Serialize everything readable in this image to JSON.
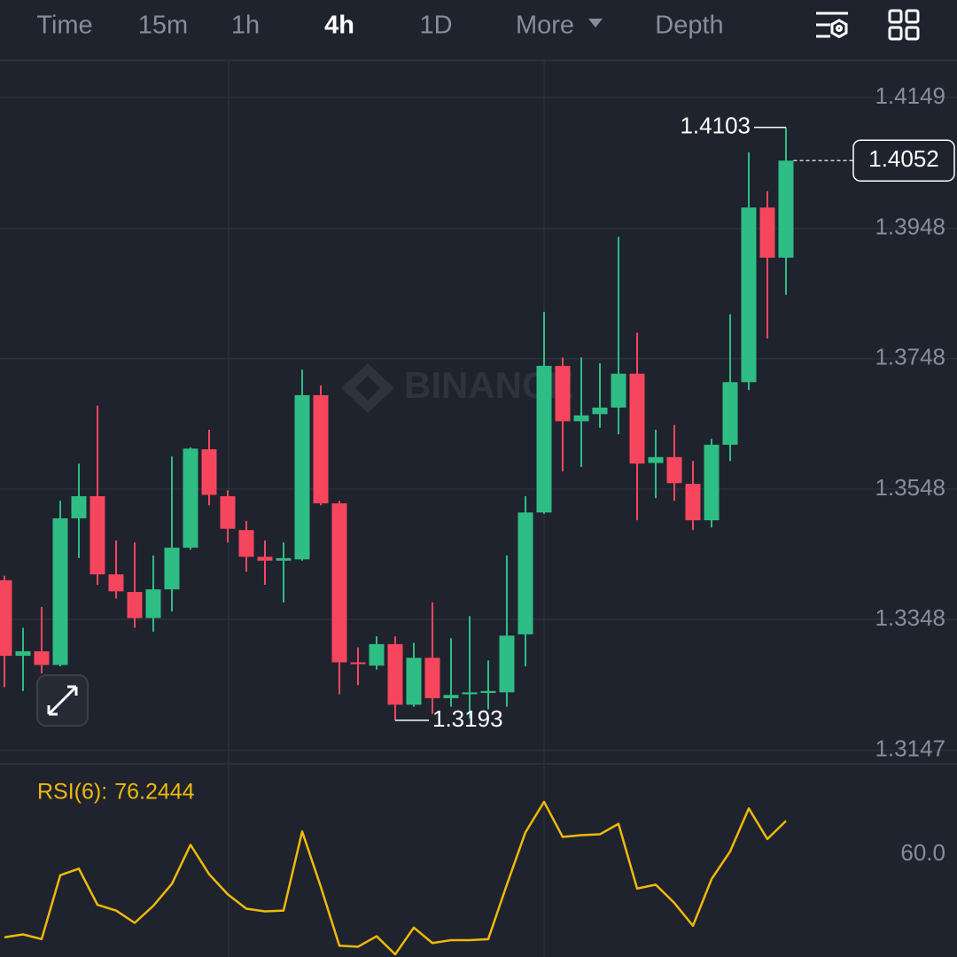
{
  "toolbar": {
    "tabs": [
      "Time",
      "15m",
      "1h",
      "4h",
      "1D",
      "More",
      "Depth"
    ],
    "active": 3
  },
  "watermark": "BINANCE",
  "chart_data": [
    {
      "type": "candlestick",
      "open": [
        1.3408,
        1.3292,
        1.3299,
        1.3278,
        1.3503,
        1.3537,
        1.3417,
        1.339,
        1.335,
        1.3394,
        1.3458,
        1.3609,
        1.3537,
        1.3485,
        1.3444,
        1.3438,
        1.344,
        1.3692,
        1.3526,
        1.3282,
        1.3277,
        1.331,
        1.3217,
        1.3289,
        1.3227,
        1.3233,
        1.3235,
        1.3236,
        1.3325,
        1.3512,
        1.3737,
        1.3652,
        1.3663,
        1.3673,
        1.3725,
        1.3588,
        1.3597,
        1.3556,
        1.35,
        1.3616,
        1.3712,
        1.398,
        1.3903
      ],
      "high": [
        1.3415,
        1.3335,
        1.3367,
        1.353,
        1.3587,
        1.3676,
        1.3469,
        1.3466,
        1.3446,
        1.3598,
        1.3612,
        1.3639,
        1.3546,
        1.3499,
        1.3469,
        1.3466,
        1.3731,
        1.3707,
        1.353,
        1.3305,
        1.3322,
        1.3322,
        1.3312,
        1.3374,
        1.3319,
        1.3353,
        1.3285,
        1.3446,
        1.3537,
        1.382,
        1.375,
        1.375,
        1.3741,
        1.3935,
        1.3788,
        1.3639,
        1.3646,
        1.3591,
        1.3625,
        1.3816,
        1.4065,
        1.4005,
        1.4103
      ],
      "low": [
        1.3244,
        1.3238,
        1.3265,
        1.3276,
        1.3442,
        1.3401,
        1.338,
        1.3335,
        1.3329,
        1.336,
        1.3455,
        1.3523,
        1.3466,
        1.3421,
        1.3401,
        1.3374,
        1.3438,
        1.3523,
        1.3233,
        1.3247,
        1.3271,
        1.3193,
        1.3214,
        1.3203,
        1.3214,
        1.3196,
        1.321,
        1.3214,
        1.3276,
        1.351,
        1.3575,
        1.3582,
        1.3642,
        1.3632,
        1.35,
        1.3534,
        1.353,
        1.3485,
        1.3489,
        1.3591,
        1.37,
        1.3779,
        1.3846
      ],
      "close": [
        1.3292,
        1.3299,
        1.3278,
        1.3503,
        1.3537,
        1.3417,
        1.3391,
        1.335,
        1.3394,
        1.3458,
        1.361,
        1.3539,
        1.3487,
        1.3444,
        1.3438,
        1.3442,
        1.3692,
        1.3526,
        1.3282,
        1.328,
        1.331,
        1.3217,
        1.3289,
        1.3227,
        1.3232,
        1.3236,
        1.3238,
        1.3323,
        1.3512,
        1.3737,
        1.3652,
        1.3661,
        1.3673,
        1.3725,
        1.3587,
        1.3597,
        1.3557,
        1.35,
        1.3616,
        1.3712,
        1.398,
        1.3903,
        1.4052
      ],
      "up_color": "#2ebd85",
      "down_color": "#f6465d",
      "ylim": [
        1.3129,
        1.4206
      ],
      "yticks": [
        1.4149,
        1.3948,
        1.3748,
        1.3548,
        1.3348,
        1.3147
      ],
      "grid": true
    },
    {
      "type": "line",
      "title": "RSI(6):",
      "color": "#f0b90b",
      "values": [
        19.6,
        21.0,
        18.7,
        49.8,
        53.0,
        35.4,
        32.6,
        26.6,
        34.9,
        45.6,
        64.6,
        50.3,
        40.5,
        33.5,
        32.2,
        32.6,
        71.1,
        44.2,
        15.5,
        15.0,
        20.1,
        11.3,
        24.3,
        16.8,
        18.2,
        18.2,
        18.7,
        45.2,
        70.7,
        85.5,
        68.4,
        69.3,
        69.7,
        74.8,
        43.3,
        45.2,
        36.3,
        25.2,
        47.9,
        61.4,
        82.3,
        67.4,
        76.2444
      ],
      "ylim": [
        10,
        104
      ],
      "yticks": [
        {
          "value": 60,
          "label": "60.0"
        }
      ],
      "grid": false
    }
  ]
}
